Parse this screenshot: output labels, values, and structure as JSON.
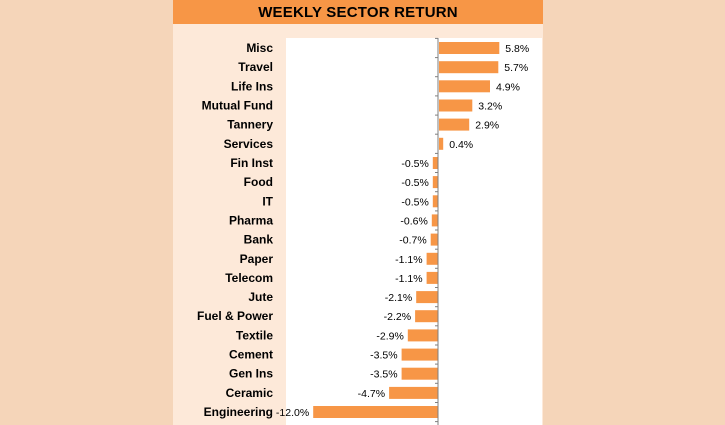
{
  "chart_data": {
    "type": "bar",
    "orientation": "horizontal",
    "title": "WEEKLY SECTOR RETURN",
    "xlabel": "",
    "ylabel": "",
    "xlim": [
      -12.0,
      6.0
    ],
    "grid": false,
    "bar_color": "#f79646",
    "title_bar_color": "#f79646",
    "categories": [
      "Misc",
      "Travel",
      "Life Ins",
      "Mutual Fund",
      "Tannery",
      "Services",
      "Fin Inst",
      "Food",
      "IT",
      "Pharma",
      "Bank",
      "Paper",
      "Telecom",
      "Jute",
      "Fuel & Power",
      "Textile",
      "Cement",
      "Gen Ins",
      "Ceramic",
      "Engineering"
    ],
    "values": [
      5.8,
      5.7,
      4.9,
      3.2,
      2.9,
      0.4,
      -0.5,
      -0.5,
      -0.5,
      -0.6,
      -0.7,
      -1.1,
      -1.1,
      -2.1,
      -2.2,
      -2.9,
      -3.5,
      -3.5,
      -4.7,
      -12.0
    ],
    "value_labels": [
      "5.8%",
      "5.7%",
      "4.9%",
      "3.2%",
      "2.9%",
      "0.4%",
      "-0.5%",
      "-0.5%",
      "-0.5%",
      "-0.6%",
      "-0.7%",
      "-1.1%",
      "-1.1%",
      "-2.1%",
      "-2.2%",
      "-2.9%",
      "-3.5%",
      "-3.5%",
      "-4.7%",
      "-12.0%"
    ]
  }
}
